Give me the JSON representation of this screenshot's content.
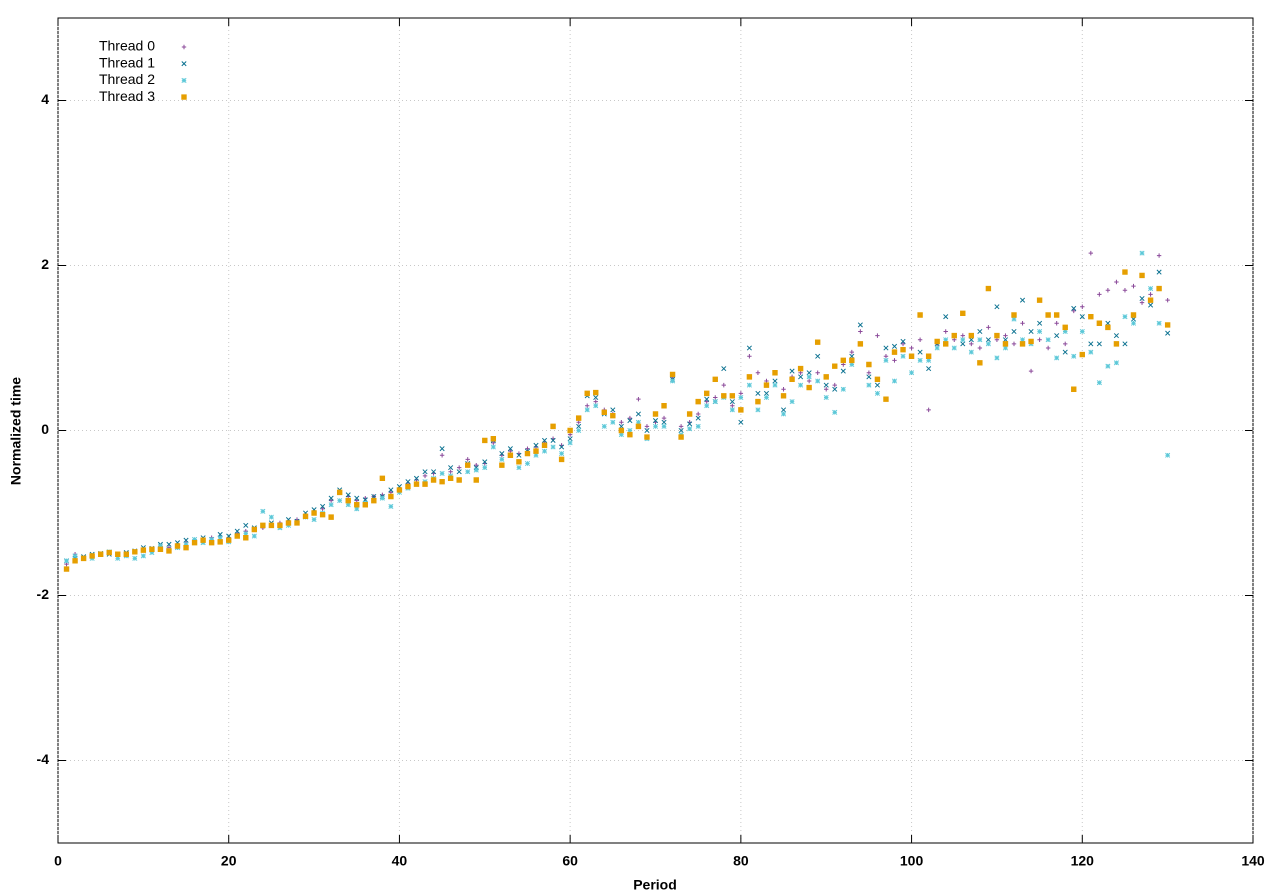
{
  "chart_data": {
    "type": "scatter",
    "xlabel": "Period",
    "ylabel": "Normalized time",
    "xlim": [
      0,
      140
    ],
    "xticks": [
      0,
      20,
      40,
      60,
      80,
      100,
      120,
      140
    ],
    "ylim": [
      -5,
      5
    ],
    "yticks": [
      -4,
      -2,
      0,
      2,
      4
    ],
    "grid": true,
    "legend": "top-left",
    "x": [
      1,
      2,
      3,
      4,
      5,
      6,
      7,
      8,
      9,
      10,
      11,
      12,
      13,
      14,
      15,
      16,
      17,
      18,
      19,
      20,
      21,
      22,
      23,
      24,
      25,
      26,
      27,
      28,
      29,
      30,
      31,
      32,
      33,
      34,
      35,
      36,
      37,
      38,
      39,
      40,
      41,
      42,
      43,
      44,
      45,
      46,
      47,
      48,
      49,
      50,
      51,
      52,
      53,
      54,
      55,
      56,
      57,
      58,
      59,
      60,
      61,
      62,
      63,
      64,
      65,
      66,
      67,
      68,
      69,
      70,
      71,
      72,
      73,
      74,
      75,
      76,
      77,
      78,
      79,
      80,
      81,
      82,
      83,
      84,
      85,
      86,
      87,
      88,
      89,
      90,
      91,
      92,
      93,
      94,
      95,
      96,
      97,
      98,
      99,
      100,
      101,
      102,
      103,
      104,
      105,
      106,
      107,
      108,
      109,
      110,
      111,
      112,
      113,
      114,
      115,
      116,
      117,
      118,
      119,
      120,
      121,
      122,
      123,
      124,
      125,
      126,
      127,
      128,
      129,
      130
    ],
    "series": [
      {
        "name": "Thread 0",
        "color": "#8b4a9a",
        "marker": "plus",
        "values": [
          -1.62,
          -1.5,
          -1.55,
          -1.52,
          -1.5,
          -1.48,
          -1.52,
          -1.5,
          -1.47,
          -1.45,
          -1.44,
          -1.4,
          -1.42,
          -1.38,
          -1.36,
          -1.35,
          -1.32,
          -1.3,
          -1.28,
          -1.3,
          -1.25,
          -1.22,
          -1.2,
          -1.18,
          -1.15,
          -1.12,
          -1.1,
          -1.08,
          -1.02,
          -0.98,
          -0.95,
          -0.85,
          -0.75,
          -0.8,
          -0.85,
          -0.82,
          -0.8,
          -0.78,
          -0.75,
          -0.7,
          -0.65,
          -0.6,
          -0.55,
          -0.52,
          -0.3,
          -0.5,
          -0.45,
          -0.35,
          -0.42,
          -0.4,
          -0.15,
          -0.3,
          -0.25,
          -0.28,
          -0.22,
          -0.2,
          -0.15,
          -0.1,
          -0.18,
          -0.05,
          0.1,
          0.3,
          0.35,
          0.25,
          0.2,
          0.1,
          0.15,
          0.38,
          0.05,
          0.1,
          0.15,
          0.65,
          0.05,
          0.1,
          0.2,
          0.35,
          0.4,
          0.55,
          0.3,
          0.45,
          0.9,
          0.7,
          0.6,
          0.7,
          0.5,
          0.65,
          0.7,
          0.6,
          0.7,
          0.5,
          0.55,
          0.8,
          0.95,
          1.2,
          0.7,
          1.15,
          0.9,
          0.85,
          1.05,
          1.0,
          1.1,
          0.25,
          1.05,
          1.2,
          1.1,
          1.15,
          1.05,
          1.0,
          1.25,
          1.1,
          1.15,
          1.05,
          1.3,
          0.72,
          1.1,
          1.0,
          1.3,
          1.05,
          1.45,
          1.5,
          2.15,
          1.65,
          1.7,
          1.8,
          1.7,
          1.75,
          1.55,
          1.65,
          2.12,
          1.58
        ]
      },
      {
        "name": "Thread 1",
        "color": "#0a7190",
        "marker": "cross",
        "values": [
          -1.58,
          -1.55,
          -1.53,
          -1.5,
          -1.49,
          -1.5,
          -1.5,
          -1.48,
          -1.46,
          -1.42,
          -1.43,
          -1.38,
          -1.38,
          -1.36,
          -1.33,
          -1.35,
          -1.3,
          -1.32,
          -1.26,
          -1.28,
          -1.22,
          -1.15,
          -1.18,
          -1.15,
          -1.12,
          -1.15,
          -1.08,
          -1.1,
          -1.0,
          -0.96,
          -0.92,
          -0.82,
          -0.72,
          -0.78,
          -0.82,
          -0.84,
          -0.8,
          -0.8,
          -0.72,
          -0.68,
          -0.62,
          -0.58,
          -0.5,
          -0.5,
          -0.22,
          -0.45,
          -0.5,
          -0.4,
          -0.45,
          -0.38,
          -0.12,
          -0.28,
          -0.22,
          -0.3,
          -0.25,
          -0.18,
          -0.12,
          -0.12,
          -0.2,
          -0.1,
          0.05,
          0.42,
          0.4,
          0.2,
          0.25,
          0.05,
          0.12,
          0.2,
          0.0,
          0.12,
          0.1,
          0.62,
          0.0,
          0.08,
          0.15,
          0.38,
          0.35,
          0.75,
          0.35,
          0.1,
          1.0,
          0.45,
          0.45,
          0.6,
          0.25,
          0.72,
          0.65,
          0.7,
          0.9,
          0.55,
          0.5,
          0.72,
          0.9,
          1.28,
          0.65,
          0.55,
          1.0,
          1.02,
          1.08,
          0.9,
          0.95,
          0.75,
          1.05,
          1.38,
          1.15,
          1.05,
          1.1,
          1.2,
          1.1,
          1.5,
          1.1,
          1.2,
          1.58,
          1.2,
          1.3,
          1.4,
          1.15,
          0.95,
          1.48,
          1.38,
          1.05,
          1.05,
          1.3,
          1.15,
          1.05,
          1.35,
          1.6,
          1.52,
          1.92,
          1.18
        ]
      },
      {
        "name": "Thread 2",
        "color": "#5cc8d8",
        "marker": "star",
        "values": [
          -1.58,
          -1.52,
          -1.55,
          -1.55,
          -1.5,
          -1.47,
          -1.55,
          -1.52,
          -1.55,
          -1.52,
          -1.48,
          -1.4,
          -1.45,
          -1.42,
          -1.38,
          -1.32,
          -1.36,
          -1.32,
          -1.3,
          -1.35,
          -1.28,
          -1.25,
          -1.28,
          -0.98,
          -1.05,
          -1.18,
          -1.15,
          -1.12,
          -1.05,
          -1.08,
          -1.0,
          -0.9,
          -0.85,
          -0.9,
          -0.95,
          -0.88,
          -0.85,
          -0.82,
          -0.92,
          -0.75,
          -0.7,
          -0.65,
          -0.62,
          -0.58,
          -0.52,
          -0.55,
          -0.6,
          -0.5,
          -0.48,
          -0.45,
          -0.2,
          -0.35,
          -0.3,
          -0.45,
          -0.4,
          -0.3,
          -0.25,
          -0.2,
          -0.28,
          -0.15,
          0.0,
          0.25,
          0.3,
          0.05,
          0.1,
          -0.05,
          0.0,
          0.1,
          -0.1,
          0.05,
          0.05,
          0.6,
          -0.05,
          0.02,
          0.05,
          0.3,
          0.35,
          0.4,
          0.25,
          0.4,
          0.55,
          0.25,
          0.4,
          0.55,
          0.2,
          0.35,
          0.55,
          0.65,
          0.6,
          0.4,
          0.22,
          0.5,
          0.8,
          1.05,
          0.55,
          0.45,
          0.85,
          0.6,
          0.9,
          0.7,
          0.85,
          0.85,
          1.0,
          1.1,
          1.0,
          1.1,
          0.95,
          1.1,
          1.05,
          0.88,
          1.0,
          1.35,
          1.1,
          1.05,
          1.2,
          1.1,
          0.88,
          1.2,
          0.9,
          1.2,
          0.95,
          0.58,
          0.78,
          0.82,
          1.38,
          1.3,
          2.15,
          1.72,
          1.3,
          -0.3
        ]
      },
      {
        "name": "Thread 3",
        "color": "#e69f00",
        "marker": "square",
        "values": [
          -1.68,
          -1.58,
          -1.55,
          -1.52,
          -1.5,
          -1.48,
          -1.5,
          -1.5,
          -1.47,
          -1.45,
          -1.44,
          -1.44,
          -1.46,
          -1.4,
          -1.42,
          -1.36,
          -1.33,
          -1.36,
          -1.35,
          -1.33,
          -1.28,
          -1.3,
          -1.2,
          -1.15,
          -1.15,
          -1.15,
          -1.12,
          -1.12,
          -1.04,
          -1.0,
          -1.02,
          -1.05,
          -0.75,
          -0.85,
          -0.9,
          -0.9,
          -0.85,
          -0.58,
          -0.8,
          -0.72,
          -0.68,
          -0.65,
          -0.65,
          -0.6,
          -0.62,
          -0.58,
          -0.6,
          -0.42,
          -0.6,
          -0.12,
          -0.1,
          -0.42,
          -0.3,
          -0.38,
          -0.28,
          -0.25,
          -0.18,
          0.05,
          -0.35,
          0.0,
          0.15,
          0.45,
          0.46,
          0.22,
          0.18,
          0.0,
          -0.05,
          0.05,
          -0.08,
          0.2,
          0.3,
          0.68,
          -0.08,
          0.2,
          0.35,
          0.45,
          0.62,
          0.42,
          0.42,
          0.25,
          0.65,
          0.35,
          0.55,
          0.7,
          0.42,
          0.62,
          0.75,
          0.52,
          1.07,
          0.65,
          0.78,
          0.85,
          0.85,
          1.05,
          0.8,
          0.62,
          0.38,
          0.95,
          0.98,
          0.9,
          1.4,
          0.9,
          1.08,
          1.05,
          1.15,
          1.42,
          1.15,
          0.82,
          1.72,
          1.15,
          1.05,
          1.4,
          1.05,
          1.08,
          1.58,
          1.4,
          1.4,
          1.25,
          0.5,
          0.92,
          1.38,
          1.3,
          1.25,
          1.05,
          1.92,
          1.4,
          1.88,
          1.58,
          1.72,
          1.28
        ]
      }
    ]
  }
}
